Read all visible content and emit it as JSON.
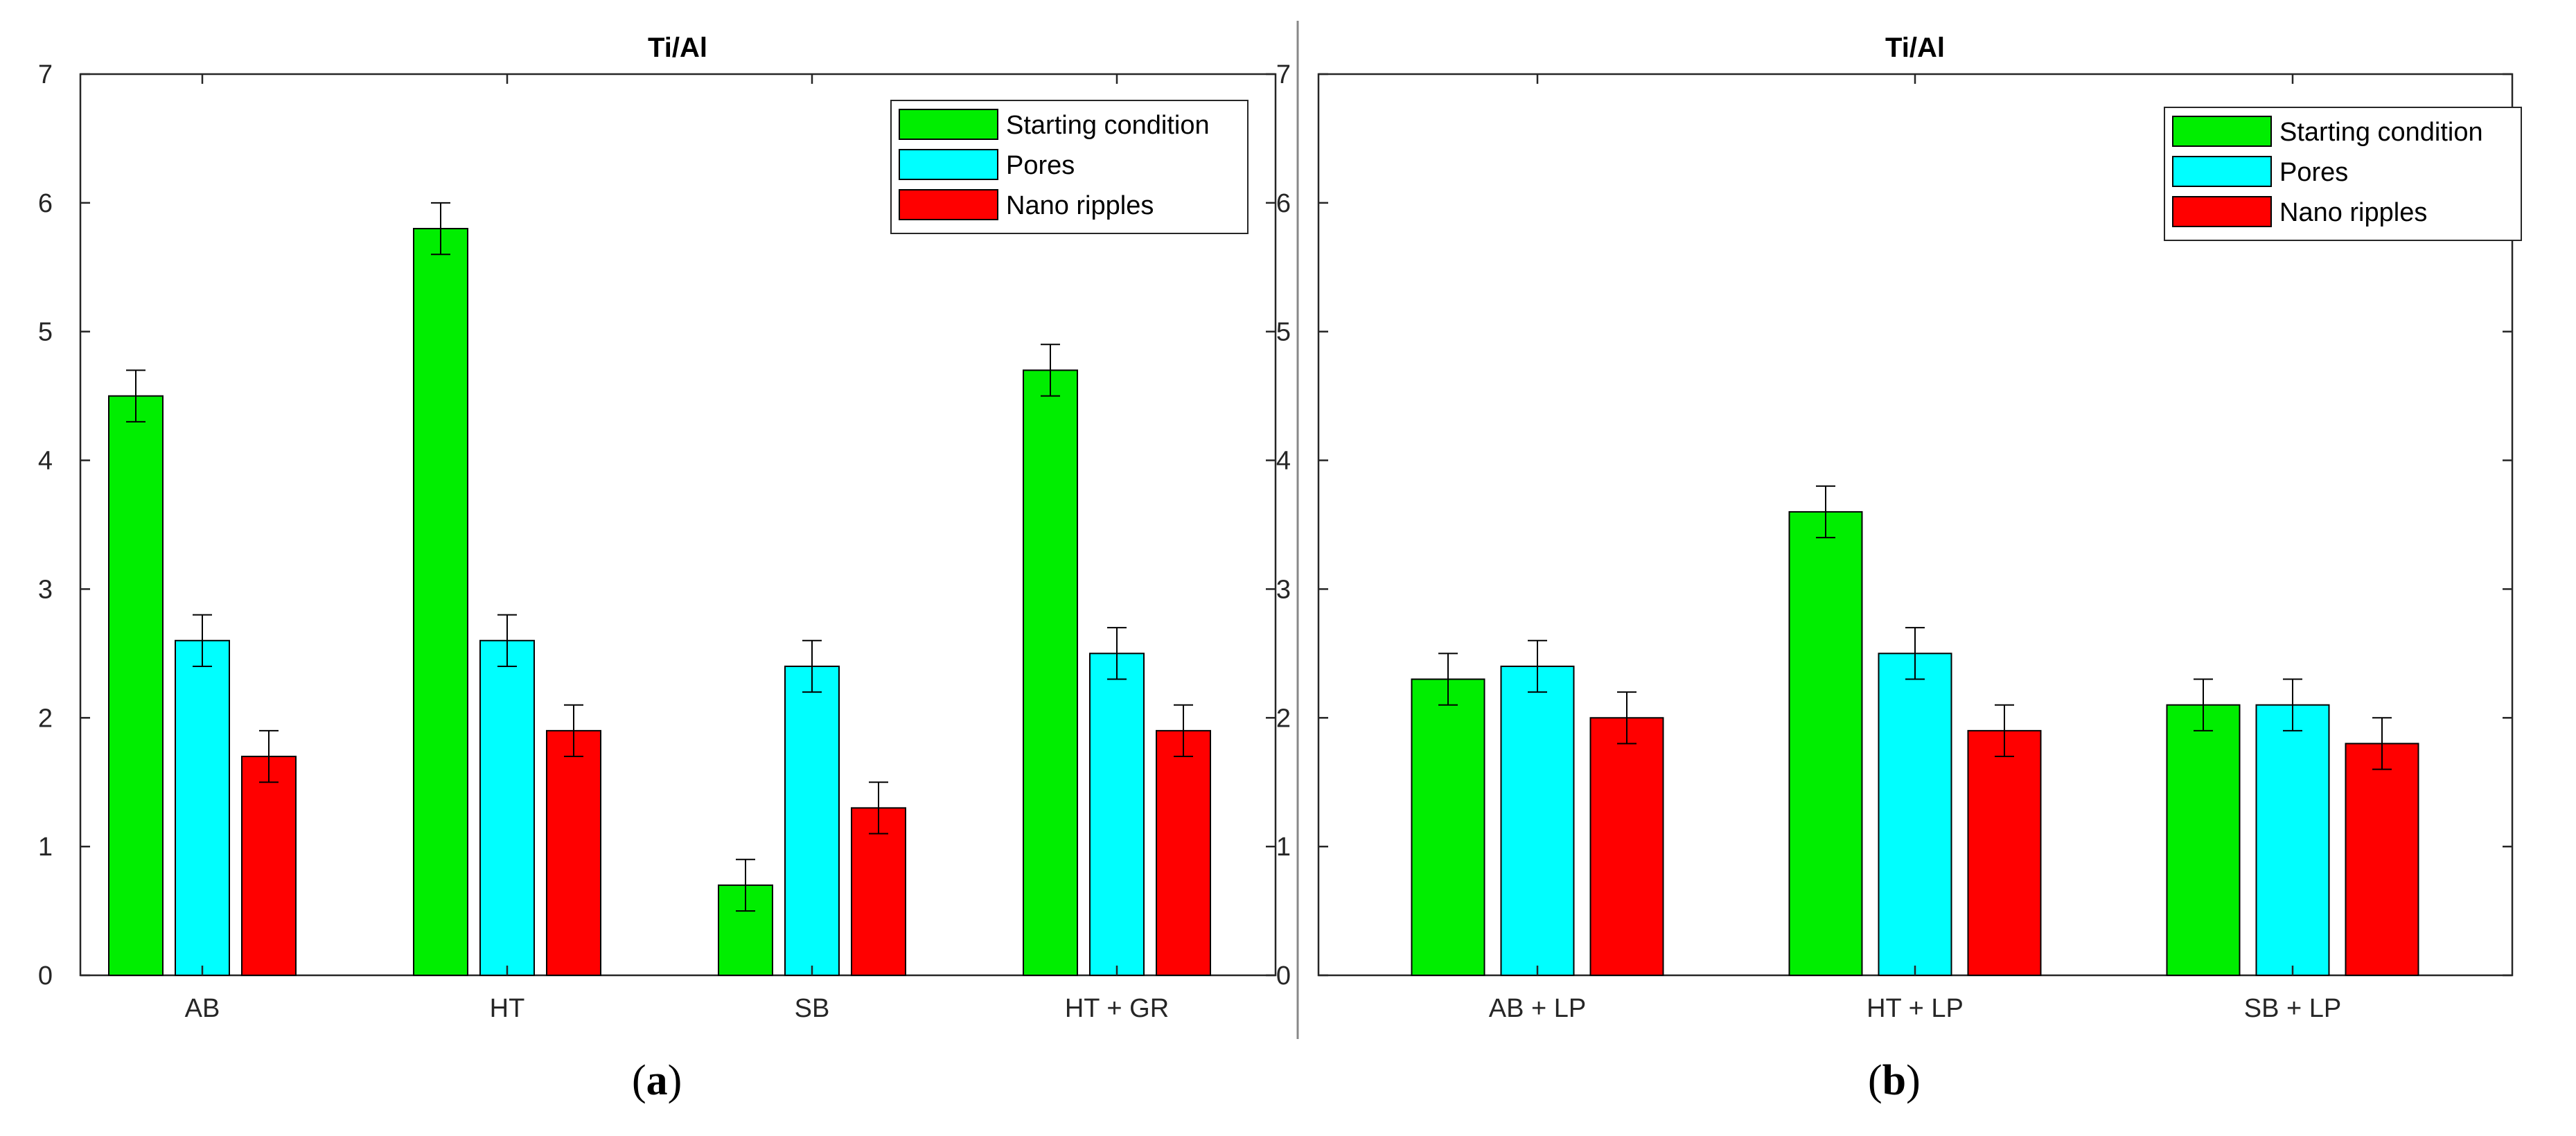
{
  "colors": {
    "starting": "#00ee00",
    "pores": "#00ffff",
    "ripples": "#ff0000",
    "axis": "#262626"
  },
  "icons": {
    "legend_swatch": "rectangle"
  },
  "chart_data": [
    {
      "type": "bar",
      "title": "Ti/Al",
      "caption_letter": "a",
      "categories": [
        "AB",
        "HT",
        "SB",
        "HT + GR"
      ],
      "series": [
        {
          "name": "Starting condition",
          "values": [
            4.5,
            5.8,
            0.7,
            4.7
          ],
          "errors": [
            0.2,
            0.2,
            0.2,
            0.2
          ]
        },
        {
          "name": "Pores",
          "values": [
            2.6,
            2.6,
            2.4,
            2.5
          ],
          "errors": [
            0.2,
            0.2,
            0.2,
            0.2
          ]
        },
        {
          "name": "Nano ripples",
          "values": [
            1.7,
            1.9,
            1.3,
            1.9
          ],
          "errors": [
            0.2,
            0.2,
            0.2,
            0.2
          ]
        }
      ],
      "ylim": [
        0,
        7
      ],
      "yticks": [
        0,
        1,
        2,
        3,
        4,
        5,
        6,
        7
      ],
      "xlabel": "",
      "ylabel": "",
      "grid": false,
      "legend_position": "top-right"
    },
    {
      "type": "bar",
      "title": "Ti/Al",
      "caption_letter": "b",
      "categories": [
        "AB + LP",
        "HT + LP",
        "SB + LP"
      ],
      "series": [
        {
          "name": "Starting condition",
          "values": [
            2.3,
            3.6,
            2.1
          ],
          "errors": [
            0.2,
            0.2,
            0.2
          ]
        },
        {
          "name": "Pores",
          "values": [
            2.4,
            2.5,
            2.1
          ],
          "errors": [
            0.2,
            0.2,
            0.2
          ]
        },
        {
          "name": "Nano ripples",
          "values": [
            2.0,
            1.9,
            1.8
          ],
          "errors": [
            0.2,
            0.2,
            0.2
          ]
        }
      ],
      "ylim": [
        0,
        7
      ],
      "yticks": [
        0,
        1,
        2,
        3,
        4,
        5,
        6,
        7
      ],
      "xlabel": "",
      "ylabel": "",
      "grid": false,
      "legend_position": "top-right"
    }
  ]
}
